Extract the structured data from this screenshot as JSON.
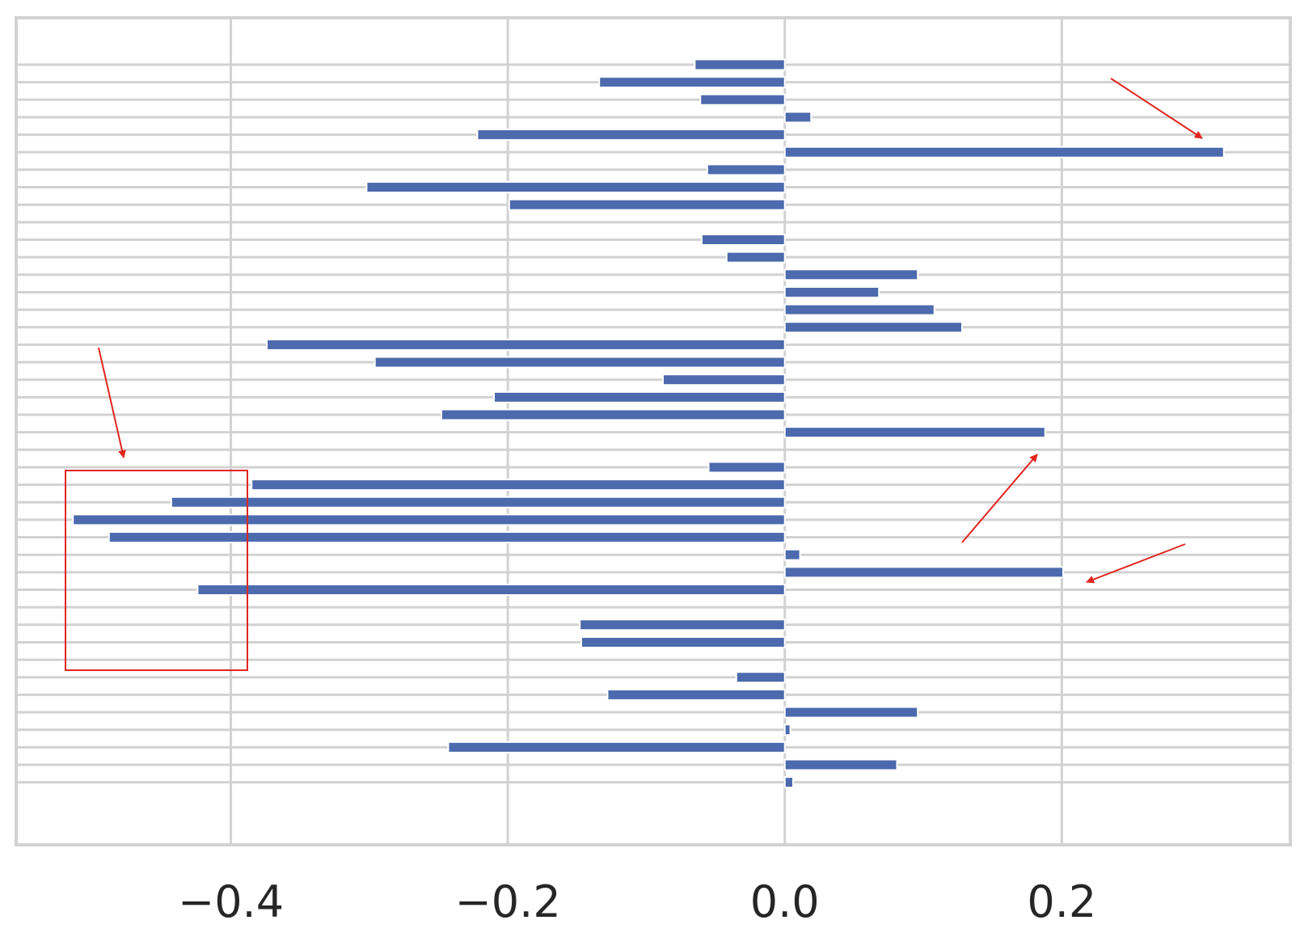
{
  "chart_data": {
    "type": "bar",
    "orientation": "horizontal",
    "title": "",
    "xlabel": "",
    "ylabel": "",
    "xlim": [
      -0.555,
      0.365
    ],
    "x_ticks": [
      -0.4,
      -0.2,
      0.0,
      0.2
    ],
    "x_tick_labels": [
      "−0.4",
      "−0.2",
      "0.0",
      "0.2"
    ],
    "grid": true,
    "legend": "none",
    "series": [
      {
        "values": [
          -0.065,
          -0.134,
          -0.061,
          0.019,
          -0.222,
          0.317,
          -0.056,
          -0.302,
          -0.199,
          0.0,
          -0.06,
          -0.042,
          0.096,
          0.068,
          0.108,
          0.128,
          -0.374,
          -0.296,
          -0.088,
          -0.21,
          -0.248,
          0.188,
          0.0,
          -0.055,
          -0.385,
          -0.443,
          -0.514,
          -0.488,
          0.011,
          0.201,
          -0.424,
          0.0,
          -0.148,
          -0.147,
          0.0,
          -0.035,
          -0.128,
          0.096,
          0.004,
          -0.243,
          0.081,
          0.006
        ]
      }
    ],
    "bar_color": "#4c6aad",
    "grid_color": "#d2d2d2",
    "annotations": {
      "color": "#e0261f",
      "arrows": [
        "top-right",
        "upper-left",
        "middle-right",
        "lower-right"
      ],
      "box": "around most negative bars"
    }
  }
}
